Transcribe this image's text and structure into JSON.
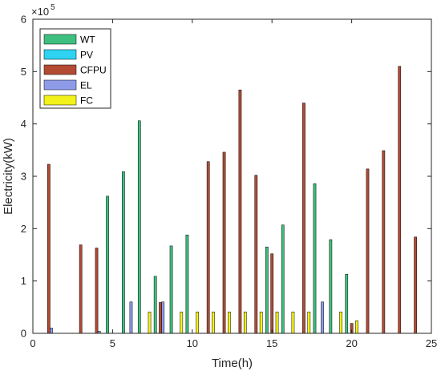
{
  "chart_data": {
    "type": "bar",
    "title": "",
    "xlabel": "Time(h)",
    "ylabel": "Electricity(kW)",
    "xlim": [
      0,
      25
    ],
    "ylim": [
      0,
      600000
    ],
    "y_exponent": "×10",
    "y_exponent_power": "5",
    "x_ticks": [
      0,
      5,
      10,
      15,
      20,
      25
    ],
    "x_tick_labels": [
      "0",
      "5",
      "10",
      "15",
      "20",
      "25"
    ],
    "y_ticks": [
      0,
      100000,
      200000,
      300000,
      400000,
      500000,
      600000
    ],
    "y_tick_labels": [
      "0",
      "1",
      "2",
      "3",
      "4",
      "5",
      "6"
    ],
    "legend_position": "top-left",
    "grid": false,
    "hours": [
      1,
      2,
      3,
      4,
      5,
      6,
      7,
      8,
      9,
      10,
      11,
      12,
      13,
      14,
      15,
      16,
      17,
      18,
      19,
      20,
      21,
      22,
      23,
      24
    ],
    "series": [
      {
        "name": "WT",
        "color": "#3fbf7f",
        "values": [
          0,
          0,
          0,
          0,
          262000,
          309000,
          406000,
          109000,
          167000,
          188000,
          0,
          0,
          0,
          0,
          165000,
          207000,
          0,
          286000,
          179000,
          113000,
          0,
          0,
          0,
          0
        ]
      },
      {
        "name": "PV",
        "color": "#2ed3f2",
        "values": [
          0,
          0,
          0,
          0,
          0,
          0,
          0,
          0,
          0,
          0,
          0,
          0,
          0,
          0,
          0,
          0,
          0,
          0,
          0,
          0,
          0,
          0,
          0,
          0
        ]
      },
      {
        "name": "CFPU",
        "color": "#b34a33",
        "values": [
          323000,
          0,
          169000,
          163000,
          0,
          0,
          0,
          59000,
          0,
          0,
          328000,
          346000,
          465000,
          302000,
          152000,
          0,
          440000,
          0,
          0,
          19000,
          314000,
          349000,
          510000,
          184000
        ]
      },
      {
        "name": "EL",
        "color": "#8e9be8",
        "values": [
          10000,
          0,
          0,
          4000,
          0,
          60000,
          0,
          60000,
          0,
          0,
          0,
          0,
          0,
          0,
          0,
          0,
          0,
          60000,
          0,
          0,
          0,
          0,
          0,
          0
        ]
      },
      {
        "name": "FC",
        "color": "#f2f21a",
        "values": [
          0,
          0,
          0,
          0,
          0,
          0,
          41000,
          0,
          41000,
          41000,
          41000,
          41000,
          41000,
          41000,
          41000,
          41000,
          41000,
          0,
          41000,
          24000,
          0,
          0,
          0,
          0
        ]
      }
    ]
  }
}
